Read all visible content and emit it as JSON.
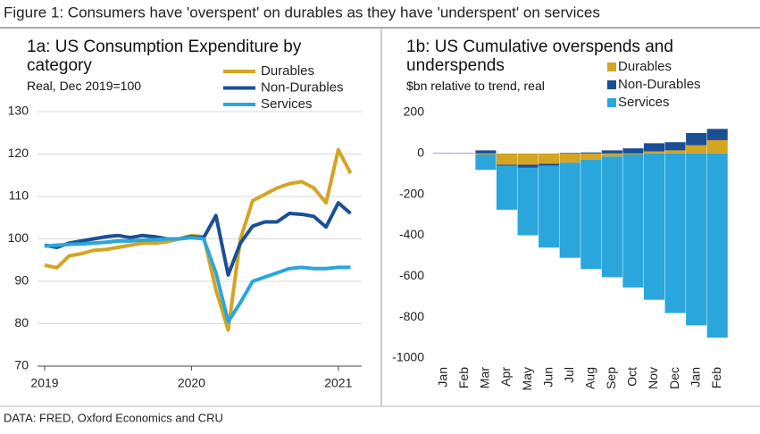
{
  "title": "Figure 1: Consumers have 'overspent' on durables as they have 'underspent' on services",
  "source": "DATA: FRED, Oxford Economics and CRU",
  "chart_data": [
    {
      "type": "line",
      "title": "1a: US Consumption Expenditure by category",
      "subtitle": "Real, Dec 2019=100",
      "categories": [
        "2019",
        null,
        null,
        null,
        null,
        null,
        null,
        null,
        null,
        null,
        null,
        null,
        "2020",
        null,
        null,
        null,
        null,
        null,
        null,
        null,
        null,
        null,
        null,
        null,
        "2021",
        null
      ],
      "series": [
        {
          "name": "Durables",
          "color": "#d4a423",
          "values": [
            93.8,
            93.2,
            96,
            96.5,
            97.3,
            97.5,
            98,
            98.5,
            99,
            99,
            99.3,
            100,
            100.8,
            100.5,
            88,
            78.5,
            100,
            109,
            110.5,
            112,
            113,
            113.5,
            112,
            108.5,
            121,
            115.5
          ]
        },
        {
          "name": "Non-Durables",
          "color": "#1b4f95",
          "values": [
            98.5,
            98,
            99,
            99.5,
            100,
            100.5,
            100.8,
            100.3,
            100.8,
            100.5,
            100,
            100,
            100.5,
            100.3,
            105.5,
            91.5,
            99,
            103,
            104,
            104,
            106,
            105.8,
            105.3,
            102.8,
            108.5,
            106
          ]
        },
        {
          "name": "Services",
          "color": "#2aa6dc",
          "values": [
            98.3,
            98.5,
            98.7,
            98.8,
            99,
            99.2,
            99.5,
            99.5,
            99.7,
            99.8,
            100,
            100,
            100.3,
            100,
            92,
            80.5,
            85,
            90,
            91,
            92,
            93,
            93.3,
            93,
            93,
            93.3,
            93.3
          ]
        }
      ],
      "ylim": [
        70,
        130
      ],
      "yticks": [
        70,
        80,
        90,
        100,
        110,
        120,
        130
      ],
      "grid": true,
      "legend": "upper right"
    },
    {
      "type": "bar",
      "title": "1b: US Cumulative overspends and underspends",
      "subtitle": "$bn relative to trend, real",
      "categories": [
        "Jan",
        "Feb",
        "Mar",
        "Apr",
        "May",
        "Jun",
        "Jul",
        "Aug",
        "Sep",
        "Oct",
        "Nov",
        "Dec",
        "Jan",
        "Feb"
      ],
      "series": [
        {
          "name": "Durables",
          "color": "#d4a423",
          "values": [
            0,
            0,
            -5,
            -55,
            -55,
            -50,
            -45,
            -30,
            -15,
            -5,
            10,
            15,
            40,
            65
          ]
        },
        {
          "name": "Non-Durables",
          "color": "#1b4f95",
          "values": [
            2,
            2,
            15,
            -5,
            -15,
            -10,
            3,
            5,
            15,
            25,
            40,
            40,
            60,
            55
          ]
        },
        {
          "name": "Services",
          "color": "#2aa6dc",
          "values": [
            0,
            0,
            -75,
            -215,
            -330,
            -400,
            -465,
            -535,
            -590,
            -650,
            -715,
            -780,
            -840,
            -900
          ]
        }
      ],
      "stacked": true,
      "ylim": [
        -1000,
        200
      ],
      "yticks": [
        200,
        0,
        -200,
        -400,
        -600,
        -800,
        -1000
      ],
      "grid": false,
      "legend": "upper right"
    }
  ]
}
